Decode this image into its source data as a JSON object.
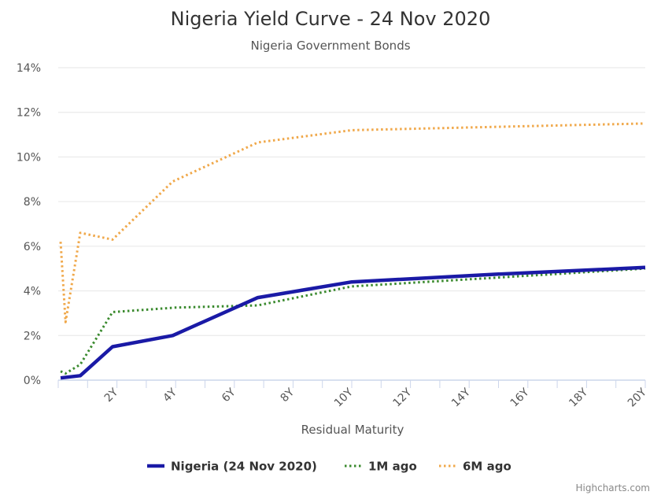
{
  "chart_data": {
    "type": "line",
    "title": "Nigeria Yield Curve - 24 Nov 2020",
    "subtitle": "Nigeria Government Bonds",
    "xlabel": "Residual Maturity",
    "ylabel": "",
    "xlim": [
      0,
      20
    ],
    "ylim": [
      0,
      14
    ],
    "grid": true,
    "legend_position": "bottom-center",
    "x_ticks": [
      {
        "value": 2,
        "label": "2Y"
      },
      {
        "value": 4,
        "label": "4Y"
      },
      {
        "value": 6,
        "label": "6Y"
      },
      {
        "value": 8,
        "label": "8Y"
      },
      {
        "value": 10,
        "label": "10Y"
      },
      {
        "value": 12,
        "label": "12Y"
      },
      {
        "value": 14,
        "label": "14Y"
      },
      {
        "value": 16,
        "label": "16Y"
      },
      {
        "value": 18,
        "label": "18Y"
      },
      {
        "value": 20,
        "label": "20Y"
      }
    ],
    "y_ticks": [
      {
        "value": 0,
        "label": "0%"
      },
      {
        "value": 2,
        "label": "2%"
      },
      {
        "value": 4,
        "label": "4%"
      },
      {
        "value": 6,
        "label": "6%"
      },
      {
        "value": 8,
        "label": "8%"
      },
      {
        "value": 10,
        "label": "10%"
      },
      {
        "value": 12,
        "label": "12%"
      },
      {
        "value": 14,
        "label": "14%"
      }
    ],
    "series": [
      {
        "name": "Nigeria (24 Nov 2020)",
        "color": "#1a1aa6",
        "style": "solid",
        "points": [
          [
            0.08,
            0.1
          ],
          [
            0.75,
            0.2
          ],
          [
            1.85,
            1.5
          ],
          [
            3.9,
            2.0
          ],
          [
            6.8,
            3.7
          ],
          [
            10.0,
            4.4
          ],
          [
            15.0,
            4.75
          ],
          [
            20.0,
            5.05
          ]
        ]
      },
      {
        "name": "1M ago",
        "color": "#3a8a2e",
        "style": "dotted",
        "points": [
          [
            0.08,
            0.4
          ],
          [
            0.25,
            0.3
          ],
          [
            0.75,
            0.7
          ],
          [
            1.85,
            3.05
          ],
          [
            4.0,
            3.25
          ],
          [
            6.8,
            3.35
          ],
          [
            10.0,
            4.2
          ],
          [
            15.0,
            4.6
          ],
          [
            20.0,
            5.0
          ]
        ]
      },
      {
        "name": "6M ago",
        "color": "#f0a84a",
        "style": "dotted",
        "points": [
          [
            0.08,
            6.2
          ],
          [
            0.25,
            2.6
          ],
          [
            0.75,
            6.6
          ],
          [
            1.85,
            6.3
          ],
          [
            3.9,
            8.9
          ],
          [
            6.8,
            10.65
          ],
          [
            10.0,
            11.2
          ],
          [
            15.0,
            11.35
          ],
          [
            20.0,
            11.5
          ]
        ]
      }
    ]
  },
  "credits": "Highcharts.com"
}
